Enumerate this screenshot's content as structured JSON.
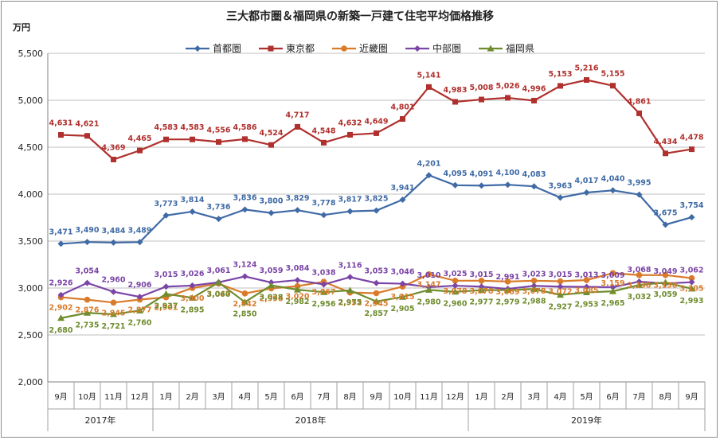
{
  "chart_data": {
    "type": "line",
    "title": "三大都市圏＆福岡県の新築一戸建て住宅平均価格推移",
    "ylabel": "万円",
    "ylim": [
      2000,
      5500
    ],
    "yticks": [
      "2,000",
      "2,500",
      "3,000",
      "3,500",
      "4,000",
      "4,500",
      "5,000",
      "5,500"
    ],
    "categories": [
      "9月",
      "10月",
      "11月",
      "12月",
      "1月",
      "2月",
      "3月",
      "4月",
      "5月",
      "6月",
      "7月",
      "8月",
      "9月",
      "10月",
      "11月",
      "12月",
      "1月",
      "2月",
      "3月",
      "4月",
      "5月",
      "6月",
      "7月",
      "8月",
      "9月"
    ],
    "years": [
      {
        "label": "2017年",
        "start": 0,
        "end": 3
      },
      {
        "label": "2018年",
        "start": 4,
        "end": 15
      },
      {
        "label": "2019年",
        "start": 16,
        "end": 24
      }
    ],
    "grid": true,
    "legend_position": "top",
    "series": [
      {
        "name": "首都圏",
        "color": "#3f6aa6",
        "marker": "diamond",
        "values": [
          3471,
          3490,
          3484,
          3489,
          3773,
          3814,
          3736,
          3836,
          3800,
          3829,
          3778,
          3817,
          3825,
          3941,
          4201,
          4095,
          4091,
          4100,
          4083,
          3963,
          4017,
          4040,
          3995,
          3675,
          3754
        ],
        "labels": [
          "3,471",
          "3,490",
          "3,484",
          "3,489",
          "3,773",
          "3,814",
          "3,736",
          "3,836",
          "3,800",
          "3,829",
          "3,778",
          "3,817",
          "3,825",
          "3,941",
          "4,201",
          "4,095",
          "4,091",
          "4,100",
          "4,083",
          "3,963",
          "4,017",
          "4,040",
          "3,995",
          "3,675",
          "3,754"
        ]
      },
      {
        "name": "東京都",
        "color": "#b0302d",
        "marker": "square",
        "values": [
          4631,
          4621,
          4369,
          4465,
          4583,
          4583,
          4556,
          4586,
          4524,
          4717,
          4548,
          4632,
          4649,
          4801,
          5141,
          4983,
          5008,
          5026,
          4996,
          5153,
          5216,
          5155,
          4861,
          4434,
          4478
        ],
        "labels": [
          "4,631",
          "4,621",
          "4,369",
          "4,465",
          "4,583",
          "4,583",
          "4,556",
          "4,586",
          "4,524",
          "4,717",
          "4,548",
          "4,632",
          "4,649",
          "4,801",
          "5,141",
          "4,983",
          "5,008",
          "5,026",
          "4,996",
          "5,153",
          "5,216",
          "5,155",
          "4,861",
          "4,434",
          "4,478"
        ]
      },
      {
        "name": "近畿圏",
        "color": "#d97b2b",
        "marker": "circle",
        "values": [
          2902,
          2876,
          2845,
          2877,
          2901,
          3000,
          3047,
          2942,
          2996,
          3020,
          3067,
          2952,
          2945,
          3015,
          3147,
          3078,
          3078,
          3069,
          3078,
          3072,
          3085,
          3159,
          3138,
          3138,
          3105
        ],
        "labels": [
          "2,902",
          "2,876",
          "2,845",
          "2,877",
          "2,901",
          "3,000",
          "3,047",
          "2,942",
          "2,996",
          "3,020",
          "3,067",
          "2,952",
          "2,945",
          "3,015",
          "3,147",
          "3,078",
          "3,078",
          "3,069",
          "3,078",
          "3,072",
          "3,085",
          "3,159",
          "3,138",
          "3,138",
          "3,105"
        ]
      },
      {
        "name": "中部圏",
        "color": "#7b45a6",
        "marker": "diamond",
        "values": [
          2926,
          3054,
          2960,
          2906,
          3015,
          3026,
          3061,
          3124,
          3059,
          3084,
          3038,
          3116,
          3053,
          3046,
          3010,
          3025,
          3015,
          2991,
          3023,
          3015,
          3013,
          3009,
          3068,
          3049,
          3062
        ],
        "labels": [
          "2,926",
          "3,054",
          "2,960",
          "2,906",
          "3,015",
          "3,026",
          "3,061",
          "3,124",
          "3,059",
          "3,084",
          "3,038",
          "3,116",
          "3,053",
          "3,046",
          "3,010",
          "3,025",
          "3,015",
          "2,991",
          "3,023",
          "3,015",
          "3,013",
          "3,009",
          "3,068",
          "3,049",
          "3,062"
        ]
      },
      {
        "name": "福岡県",
        "color": "#6f8c2e",
        "marker": "triangle",
        "values": [
          2680,
          2735,
          2721,
          2760,
          2937,
          2895,
          3060,
          2850,
          3028,
          2982,
          2956,
          2975,
          2857,
          2905,
          2980,
          2960,
          2977,
          2979,
          2988,
          2927,
          2953,
          2965,
          3032,
          3059,
          2993
        ],
        "labels": [
          "2,680",
          "2,735",
          "2,721",
          "2,760",
          "2,937",
          "2,895",
          "3,060",
          "2,850",
          "3,028",
          "2,982",
          "2,956",
          "2,975",
          "2,857",
          "2,905",
          "2,980",
          "2,960",
          "2,977",
          "2,979",
          "2,988",
          "2,927",
          "2,953",
          "2,965",
          "3,032",
          "3,059",
          "2,993"
        ]
      }
    ]
  }
}
